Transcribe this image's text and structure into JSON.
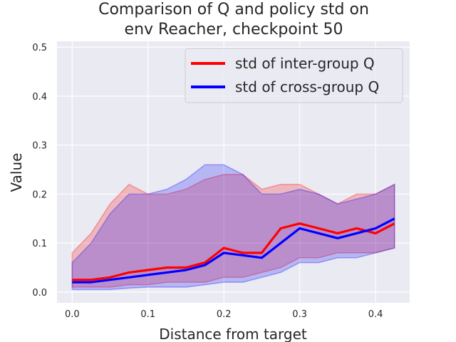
{
  "chart_data": {
    "type": "line",
    "title": "Comparison of Q and policy std on\nenv Reacher, checkpoint 50",
    "xlabel": "Distance from target",
    "ylabel": "Value",
    "xlim": [
      -0.02,
      0.445
    ],
    "ylim": [
      -0.022,
      0.512
    ],
    "xticks": [
      0.0,
      0.1,
      0.2,
      0.3,
      0.4
    ],
    "xtick_labels": [
      "0.0",
      "0.1",
      "0.2",
      "0.3",
      "0.4"
    ],
    "yticks": [
      0.0,
      0.1,
      0.2,
      0.3,
      0.4,
      0.5
    ],
    "ytick_labels": [
      "0.0",
      "0.1",
      "0.2",
      "0.3",
      "0.4",
      "0.5"
    ],
    "grid": true,
    "legend_position": "upper right",
    "x": [
      0.0,
      0.025,
      0.05,
      0.075,
      0.1,
      0.125,
      0.15,
      0.175,
      0.2,
      0.225,
      0.25,
      0.275,
      0.3,
      0.325,
      0.35,
      0.375,
      0.4,
      0.425
    ],
    "series": [
      {
        "name": "std of inter-group Q",
        "color": "#ff0000",
        "values": [
          0.025,
          0.025,
          0.03,
          0.04,
          0.045,
          0.05,
          0.05,
          0.06,
          0.09,
          0.08,
          0.08,
          0.13,
          0.14,
          0.13,
          0.12,
          0.13,
          0.12,
          0.14
        ],
        "band_lower": [
          0.01,
          0.01,
          0.01,
          0.015,
          0.015,
          0.02,
          0.02,
          0.02,
          0.03,
          0.03,
          0.04,
          0.05,
          0.07,
          0.07,
          0.08,
          0.08,
          0.08,
          0.09
        ],
        "band_upper": [
          0.08,
          0.12,
          0.18,
          0.22,
          0.2,
          0.2,
          0.21,
          0.23,
          0.24,
          0.24,
          0.21,
          0.22,
          0.22,
          0.2,
          0.18,
          0.2,
          0.2,
          0.22
        ]
      },
      {
        "name": "std of cross-group Q",
        "color": "#0000ff",
        "values": [
          0.02,
          0.02,
          0.025,
          0.03,
          0.035,
          0.04,
          0.045,
          0.055,
          0.08,
          0.075,
          0.07,
          0.1,
          0.13,
          0.12,
          0.11,
          0.12,
          0.13,
          0.15
        ],
        "band_lower": [
          0.005,
          0.005,
          0.005,
          0.008,
          0.01,
          0.01,
          0.01,
          0.015,
          0.02,
          0.02,
          0.03,
          0.04,
          0.06,
          0.06,
          0.07,
          0.07,
          0.08,
          0.09
        ],
        "band_upper": [
          0.06,
          0.1,
          0.16,
          0.2,
          0.2,
          0.21,
          0.23,
          0.26,
          0.26,
          0.24,
          0.2,
          0.2,
          0.21,
          0.2,
          0.18,
          0.19,
          0.2,
          0.22
        ]
      }
    ]
  }
}
